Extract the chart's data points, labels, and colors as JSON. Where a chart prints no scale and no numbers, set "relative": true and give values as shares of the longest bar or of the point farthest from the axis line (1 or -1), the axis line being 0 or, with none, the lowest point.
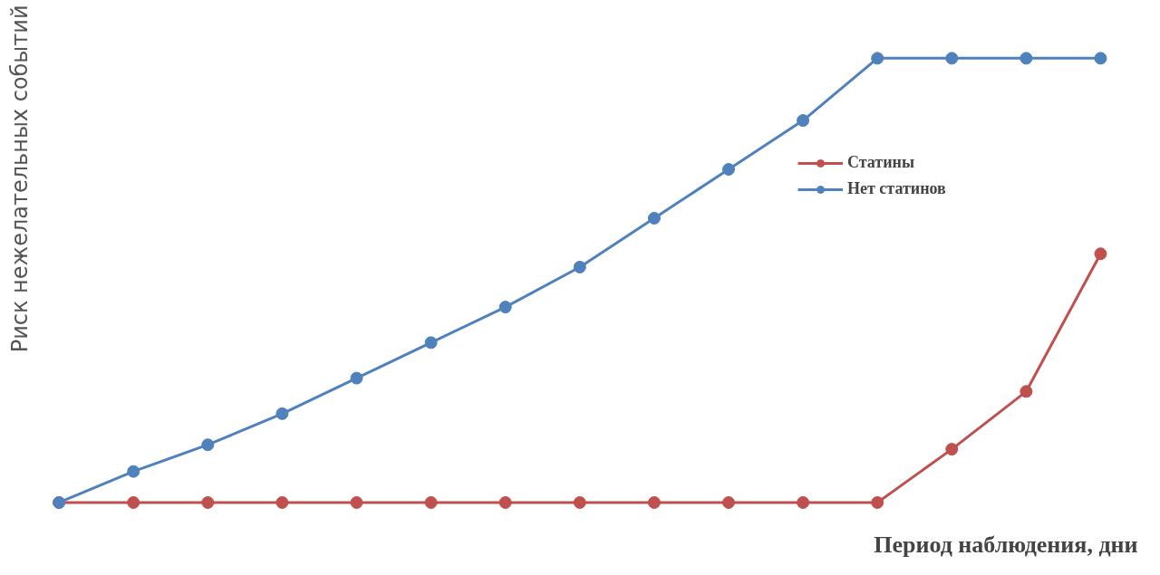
{
  "chart_data": {
    "type": "line",
    "relative": true,
    "xlabel": "Период наблюдения, дни",
    "ylabel": "Риск нежелательных событий",
    "categories": [
      null,
      null,
      null,
      null,
      null,
      null,
      null,
      null,
      null,
      null,
      null,
      null,
      null,
      null,
      null
    ],
    "series": [
      {
        "name": "Статины",
        "color": "#c0504d",
        "values": [
          0,
          0,
          0,
          0,
          0,
          0,
          0,
          0,
          0,
          0,
          0,
          0,
          0.12,
          0.25,
          0.56
        ]
      },
      {
        "name": "Нет статинов",
        "color": "#4f81bd",
        "values": [
          0,
          0.07,
          0.13,
          0.2,
          0.28,
          0.36,
          0.44,
          0.53,
          0.64,
          0.75,
          0.86,
          1,
          1,
          1,
          1
        ]
      }
    ],
    "marker": "circle",
    "line_style": "solid",
    "legend": "right",
    "grid": false,
    "tick_labels": false
  }
}
